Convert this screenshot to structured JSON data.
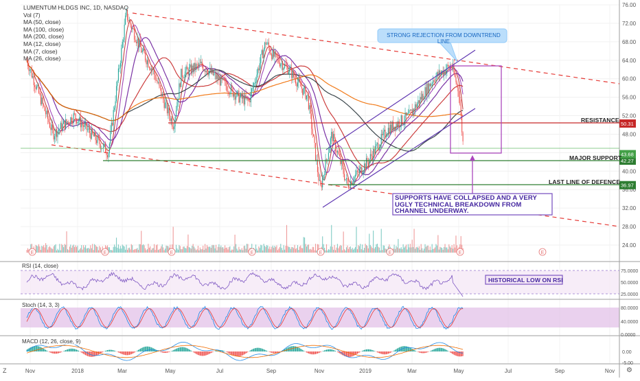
{
  "chart_data": {
    "type": "candlestick",
    "title": "LUMENTUM HLDGS INC, 1D, NASDAQ",
    "indicators": [
      "Vol (7)",
      "MA (50, close)",
      "MA (100, close)",
      "MA (200, close)",
      "MA (12, close)",
      "MA (7, close)",
      "MA (26, close)"
    ],
    "x_ticks": [
      "Nov",
      "2018",
      "Mar",
      "May",
      "Jul",
      "Sep",
      "Nov",
      "2019",
      "Mar",
      "May",
      "Jul",
      "Sep",
      "Nov"
    ],
    "y_ticks": [
      "76.00",
      "72.00",
      "68.00",
      "64.00",
      "60.00",
      "56.00",
      "52.00",
      "48.00",
      "44.00",
      "40.00",
      "36.00",
      "32.00",
      "28.00",
      "24.00"
    ],
    "ylim": [
      22,
      77
    ],
    "price_key_points": [
      {
        "x": "2017-10-28",
        "y": 64
      },
      {
        "x": "2017-12-01",
        "y": 48
      },
      {
        "x": "2017-12-28",
        "y": 52
      },
      {
        "x": "2018-02-10",
        "y": 44
      },
      {
        "x": "2018-03-05",
        "y": 74
      },
      {
        "x": "2018-03-25",
        "y": 66
      },
      {
        "x": "2018-04-08",
        "y": 62
      },
      {
        "x": "2018-04-25",
        "y": 54
      },
      {
        "x": "2018-05-05",
        "y": 50
      },
      {
        "x": "2018-05-15",
        "y": 61
      },
      {
        "x": "2018-06-10",
        "y": 63
      },
      {
        "x": "2018-07-15",
        "y": 58
      },
      {
        "x": "2018-07-28",
        "y": 56
      },
      {
        "x": "2018-08-10",
        "y": 55
      },
      {
        "x": "2018-09-01",
        "y": 68
      },
      {
        "x": "2018-09-10",
        "y": 65
      },
      {
        "x": "2018-10-01",
        "y": 62
      },
      {
        "x": "2018-10-25",
        "y": 56
      },
      {
        "x": "2018-11-10",
        "y": 36
      },
      {
        "x": "2018-11-25",
        "y": 48
      },
      {
        "x": "2018-12-15",
        "y": 37
      },
      {
        "x": "2019-01-10",
        "y": 42
      },
      {
        "x": "2019-02-05",
        "y": 49
      },
      {
        "x": "2019-03-05",
        "y": 52
      },
      {
        "x": "2019-04-05",
        "y": 60
      },
      {
        "x": "2019-04-28",
        "y": 63
      },
      {
        "x": "2019-05-08",
        "y": 57
      },
      {
        "x": "2019-05-14",
        "y": 44
      }
    ],
    "resistance": {
      "label": "RESISTANCE",
      "value": "50.31"
    },
    "major_support": {
      "label": "MAJOR SUPPORT",
      "value": "42.27"
    },
    "last_line": {
      "label": "LAST LINE OF  DEFENCE",
      "value": "36.97"
    },
    "current_price_tag": "43.68",
    "rsi": {
      "label": "RSI (14, close)",
      "y_ticks": [
        "75.0000",
        "50.0000",
        "25.0000"
      ]
    },
    "stoch": {
      "label": "Stoch (14, 3, 3)",
      "y_ticks": [
        "80.0000",
        "40.0000",
        "0.0000"
      ]
    },
    "macd": {
      "label": "MACD (12, 26, close, 9)",
      "y_ticks": [
        "0.00",
        "-5.00"
      ]
    },
    "earnings_markers": [
      "E",
      "E",
      "E",
      "E",
      "E",
      "E",
      "E",
      "E"
    ],
    "colors": {
      "up": "#26a69a",
      "down": "#ef5350",
      "dashed": "#e53935",
      "channel": "#5e35b1",
      "support": "#2e7d32",
      "resistance": "#c62828",
      "box": "#ab47bc"
    }
  },
  "annotations": {
    "rejection": "STRONG REJECTION FROM DOWNTREND LINE",
    "breakdown": "SUPPORTS HAVE COLLAPSED AND A VERY UGLY TECHNICAL BREAKDOWN FROM CHANNEL UNDERWAY.",
    "rsi_low": "HISTORICAL LOW ON RSI"
  },
  "corner": {
    "left": "Z",
    "right": "⚙"
  }
}
